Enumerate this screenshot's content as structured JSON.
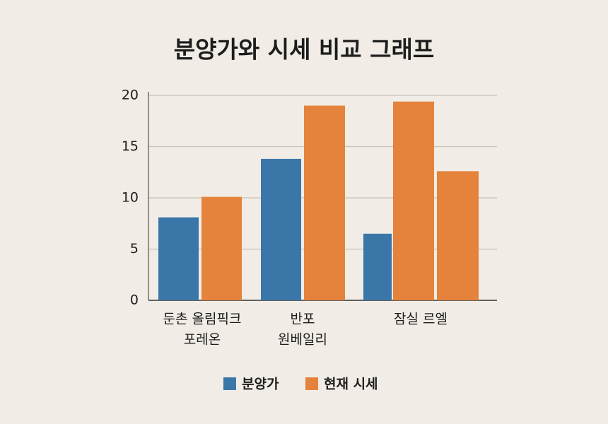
{
  "chart_data": {
    "type": "bar",
    "title": "분양가와 시세 비교 그래프",
    "categories": [
      [
        "둔촌 올림픽크",
        "포레온"
      ],
      [
        "반포",
        "원베일리"
      ],
      [
        "잠실 르엘"
      ],
      null
    ],
    "series": [
      {
        "name": "분양가",
        "color": "#3b76a9",
        "values": [
          8.1,
          13.8,
          6.5,
          null
        ]
      },
      {
        "name": "현재 시세",
        "color": "#e5823b",
        "values": [
          10.1,
          19.0,
          19.4,
          12.6
        ]
      }
    ],
    "ylim": [
      0,
      20
    ],
    "yticks": [
      0,
      5,
      10,
      15,
      20
    ],
    "grid": true
  }
}
